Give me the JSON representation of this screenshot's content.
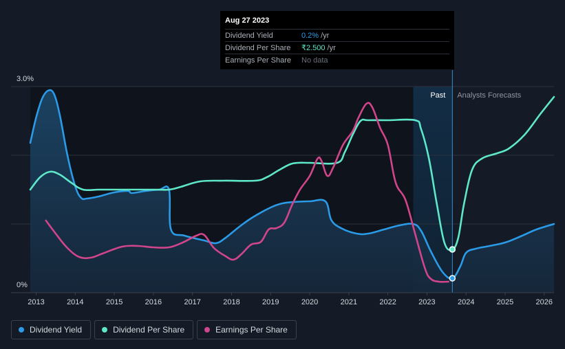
{
  "chart_data": {
    "type": "line",
    "x_ticks": [
      "2013",
      "2014",
      "2015",
      "2016",
      "2017",
      "2018",
      "2019",
      "2020",
      "2021",
      "2022",
      "2023",
      "2024",
      "2025",
      "2026"
    ],
    "xlim": [
      2012.85,
      2026.25
    ],
    "ylim": [
      0,
      3.0
    ],
    "y_ticks": [
      "3.0%",
      "0%"
    ],
    "gridlines": [
      1.0,
      2.0,
      3.0
    ],
    "past_label": "Past",
    "forecast_label": "Analysts Forecasts",
    "highlight_range": [
      2022.65,
      2023.65
    ],
    "past_end": 2023.65,
    "series": [
      {
        "name": "Dividend Yield",
        "color": "#2b9be8",
        "area": true,
        "points": [
          [
            2012.85,
            2.18
          ],
          [
            2013.0,
            2.55
          ],
          [
            2013.15,
            2.82
          ],
          [
            2013.3,
            2.94
          ],
          [
            2013.45,
            2.9
          ],
          [
            2013.6,
            2.6
          ],
          [
            2013.8,
            2.0
          ],
          [
            2014.0,
            1.55
          ],
          [
            2014.15,
            1.38
          ],
          [
            2014.3,
            1.37
          ],
          [
            2014.6,
            1.4
          ],
          [
            2015.0,
            1.46
          ],
          [
            2015.35,
            1.48
          ],
          [
            2015.45,
            1.45
          ],
          [
            2015.8,
            1.48
          ],
          [
            2016.15,
            1.5
          ],
          [
            2016.4,
            1.5
          ],
          [
            2016.45,
            0.92
          ],
          [
            2016.8,
            0.83
          ],
          [
            2017.3,
            0.76
          ],
          [
            2017.6,
            0.72
          ],
          [
            2017.85,
            0.8
          ],
          [
            2018.2,
            0.96
          ],
          [
            2018.55,
            1.1
          ],
          [
            2019.0,
            1.24
          ],
          [
            2019.3,
            1.3
          ],
          [
            2019.6,
            1.32
          ],
          [
            2020.0,
            1.33
          ],
          [
            2020.4,
            1.33
          ],
          [
            2020.55,
            1.06
          ],
          [
            2020.8,
            0.94
          ],
          [
            2021.2,
            0.86
          ],
          [
            2021.5,
            0.86
          ],
          [
            2021.9,
            0.92
          ],
          [
            2022.3,
            0.98
          ],
          [
            2022.65,
            1.0
          ],
          [
            2022.85,
            0.9
          ],
          [
            2023.1,
            0.6
          ],
          [
            2023.4,
            0.3
          ],
          [
            2023.65,
            0.21
          ],
          [
            2023.85,
            0.38
          ],
          [
            2024.0,
            0.58
          ],
          [
            2024.25,
            0.64
          ],
          [
            2024.6,
            0.68
          ],
          [
            2025.0,
            0.73
          ],
          [
            2025.4,
            0.82
          ],
          [
            2025.8,
            0.92
          ],
          [
            2026.25,
            1.0
          ]
        ]
      },
      {
        "name": "Dividend Per Share",
        "color": "#5ee8c9",
        "area": false,
        "points": [
          [
            2012.85,
            1.5
          ],
          [
            2013.1,
            1.68
          ],
          [
            2013.35,
            1.76
          ],
          [
            2013.6,
            1.72
          ],
          [
            2013.9,
            1.6
          ],
          [
            2014.2,
            1.5
          ],
          [
            2014.6,
            1.5
          ],
          [
            2015.0,
            1.5
          ],
          [
            2016.0,
            1.5
          ],
          [
            2016.4,
            1.5
          ],
          [
            2016.7,
            1.54
          ],
          [
            2017.2,
            1.62
          ],
          [
            2017.8,
            1.63
          ],
          [
            2018.6,
            1.63
          ],
          [
            2018.9,
            1.68
          ],
          [
            2019.2,
            1.78
          ],
          [
            2019.5,
            1.87
          ],
          [
            2019.7,
            1.89
          ],
          [
            2020.0,
            1.89
          ],
          [
            2020.7,
            1.89
          ],
          [
            2020.9,
            2.05
          ],
          [
            2021.1,
            2.3
          ],
          [
            2021.3,
            2.5
          ],
          [
            2021.5,
            2.51
          ],
          [
            2022.0,
            2.51
          ],
          [
            2022.7,
            2.51
          ],
          [
            2022.85,
            2.38
          ],
          [
            2023.05,
            1.95
          ],
          [
            2023.25,
            1.3
          ],
          [
            2023.45,
            0.72
          ],
          [
            2023.65,
            0.63
          ],
          [
            2023.8,
            0.8
          ],
          [
            2023.95,
            1.3
          ],
          [
            2024.15,
            1.78
          ],
          [
            2024.4,
            1.95
          ],
          [
            2024.8,
            2.03
          ],
          [
            2025.1,
            2.1
          ],
          [
            2025.5,
            2.3
          ],
          [
            2025.9,
            2.6
          ],
          [
            2026.25,
            2.85
          ]
        ]
      },
      {
        "name": "Earnings Per Share",
        "color": "#d1458b",
        "area": false,
        "points": [
          [
            2013.25,
            1.05
          ],
          [
            2013.5,
            0.86
          ],
          [
            2013.8,
            0.65
          ],
          [
            2014.1,
            0.52
          ],
          [
            2014.4,
            0.51
          ],
          [
            2014.7,
            0.57
          ],
          [
            2015.2,
            0.67
          ],
          [
            2015.6,
            0.68
          ],
          [
            2016.0,
            0.66
          ],
          [
            2016.4,
            0.66
          ],
          [
            2016.75,
            0.73
          ],
          [
            2017.1,
            0.83
          ],
          [
            2017.3,
            0.84
          ],
          [
            2017.55,
            0.65
          ],
          [
            2017.85,
            0.53
          ],
          [
            2018.05,
            0.48
          ],
          [
            2018.25,
            0.56
          ],
          [
            2018.5,
            0.7
          ],
          [
            2018.75,
            0.74
          ],
          [
            2018.95,
            0.92
          ],
          [
            2019.15,
            0.94
          ],
          [
            2019.35,
            1.02
          ],
          [
            2019.55,
            1.28
          ],
          [
            2019.75,
            1.5
          ],
          [
            2020.0,
            1.7
          ],
          [
            2020.2,
            1.95
          ],
          [
            2020.3,
            1.92
          ],
          [
            2020.45,
            1.7
          ],
          [
            2020.6,
            1.82
          ],
          [
            2020.85,
            2.15
          ],
          [
            2021.1,
            2.35
          ],
          [
            2021.25,
            2.55
          ],
          [
            2021.45,
            2.75
          ],
          [
            2021.6,
            2.7
          ],
          [
            2021.8,
            2.4
          ],
          [
            2022.0,
            2.15
          ],
          [
            2022.2,
            1.6
          ],
          [
            2022.45,
            1.35
          ],
          [
            2022.7,
            0.85
          ],
          [
            2022.95,
            0.35
          ],
          [
            2023.1,
            0.2
          ],
          [
            2023.3,
            0.16
          ],
          [
            2023.55,
            0.16
          ]
        ]
      }
    ],
    "markers": [
      {
        "series": "Dividend Per Share",
        "x": 2023.65,
        "y": 0.63
      },
      {
        "series": "Dividend Yield",
        "x": 2023.65,
        "y": 0.21
      }
    ]
  },
  "tooltip": {
    "date": "Aug 27 2023",
    "rows": [
      {
        "name": "Dividend Yield",
        "value": "0.2%",
        "unit": "/yr",
        "color": "#2b9be8"
      },
      {
        "name": "Dividend Per Share",
        "value": "₹2.500",
        "unit": "/yr",
        "color": "#5ee8c9"
      },
      {
        "name": "Earnings Per Share",
        "value": "No data",
        "unit": "",
        "color": "#6b717a"
      }
    ]
  },
  "legend": {
    "items": [
      {
        "label": "Dividend Yield",
        "color": "#2b9be8"
      },
      {
        "label": "Dividend Per Share",
        "color": "#5ee8c9"
      },
      {
        "label": "Earnings Per Share",
        "color": "#d1458b"
      }
    ]
  }
}
